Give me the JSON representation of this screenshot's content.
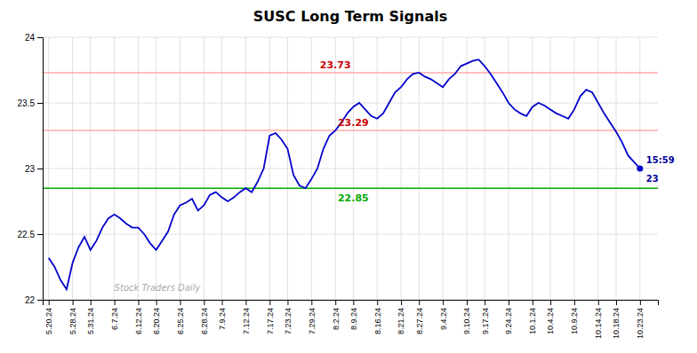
{
  "chart_data": {
    "type": "line",
    "title": "SUSC Long Term Signals",
    "color": "#0000cc",
    "grid": true,
    "categories": [
      "5.20.24",
      null,
      null,
      null,
      "5.28.24",
      null,
      null,
      "5.31.24",
      null,
      null,
      null,
      "6.7.24",
      null,
      null,
      null,
      "6.12.24",
      null,
      null,
      "6.20.24",
      null,
      null,
      null,
      "6.25.24",
      null,
      null,
      null,
      "6.28.24",
      null,
      null,
      "7.9.24",
      null,
      null,
      null,
      "7.12.24",
      null,
      null,
      null,
      "7.17.24",
      null,
      null,
      "7.23.24",
      null,
      null,
      null,
      "7.29.24",
      null,
      null,
      null,
      "8.2.24",
      null,
      null,
      "8.9.24",
      null,
      null,
      null,
      "8.16.24",
      null,
      null,
      null,
      "8.21.24",
      null,
      null,
      "8.27.24",
      null,
      null,
      null,
      "9.4.24",
      null,
      null,
      null,
      "9.10.24",
      null,
      null,
      "9.17.24",
      null,
      null,
      null,
      "9.24.24",
      null,
      null,
      null,
      "10.1.24",
      null,
      null,
      "10.4.24",
      null,
      null,
      null,
      "10.9.24",
      null,
      null,
      null,
      "10.14.24",
      null,
      null,
      "10.18.24",
      null,
      null,
      null,
      "10.23.24"
    ],
    "values": [
      22.32,
      22.25,
      22.15,
      22.08,
      22.28,
      22.4,
      22.48,
      22.38,
      22.45,
      22.55,
      22.62,
      22.65,
      22.62,
      22.58,
      22.55,
      22.55,
      22.5,
      22.43,
      22.38,
      22.45,
      22.52,
      22.65,
      22.72,
      22.74,
      22.77,
      22.68,
      22.72,
      22.8,
      22.82,
      22.78,
      22.75,
      22.78,
      22.82,
      22.85,
      22.82,
      22.9,
      23.0,
      23.25,
      23.27,
      23.22,
      23.15,
      22.95,
      22.87,
      22.85,
      22.92,
      23.0,
      23.15,
      23.25,
      23.29,
      23.35,
      23.42,
      23.47,
      23.5,
      23.45,
      23.4,
      23.38,
      23.42,
      23.5,
      23.58,
      23.62,
      23.68,
      23.72,
      23.73,
      23.7,
      23.68,
      23.65,
      23.62,
      23.68,
      23.72,
      23.78,
      23.8,
      23.82,
      23.83,
      23.78,
      23.72,
      23.65,
      23.58,
      23.5,
      23.45,
      23.42,
      23.4,
      23.47,
      23.5,
      23.48,
      23.45,
      23.42,
      23.4,
      23.38,
      23.45,
      23.55,
      23.6,
      23.58,
      23.5,
      23.42,
      23.35,
      23.28,
      23.2,
      23.1,
      23.05,
      23.0
    ],
    "ylim": [
      22.0,
      24.0
    ],
    "yticks": [
      22,
      22.5,
      23,
      23.5,
      24
    ],
    "hlines": [
      {
        "value": 22.85,
        "color": "#00aa00"
      },
      {
        "value": 23.29,
        "color": "#ffaaaa"
      },
      {
        "value": 23.73,
        "color": "#ffaaaa"
      }
    ],
    "annotations": [
      {
        "text": "23.73",
        "x": "8.2.24",
        "y": 23.73,
        "color": "#cc0000",
        "position": "above"
      },
      {
        "text": "23.29",
        "x": "8.9.24",
        "y": 23.29,
        "color": "#cc0000",
        "position": "above"
      },
      {
        "text": "22.85",
        "x": "8.9.24",
        "y": 22.85,
        "color": "#00aa00",
        "position": "below"
      },
      {
        "text": "15:59",
        "color": "#000099",
        "position": "above"
      },
      {
        "text": "23",
        "color": "#000099",
        "position": "below"
      },
      {
        "text": "Stock Traders Daily",
        "x": "6.7.24",
        "y": 22.05,
        "color": "#aaaaaa",
        "position": "right",
        "style": "italic"
      }
    ]
  }
}
